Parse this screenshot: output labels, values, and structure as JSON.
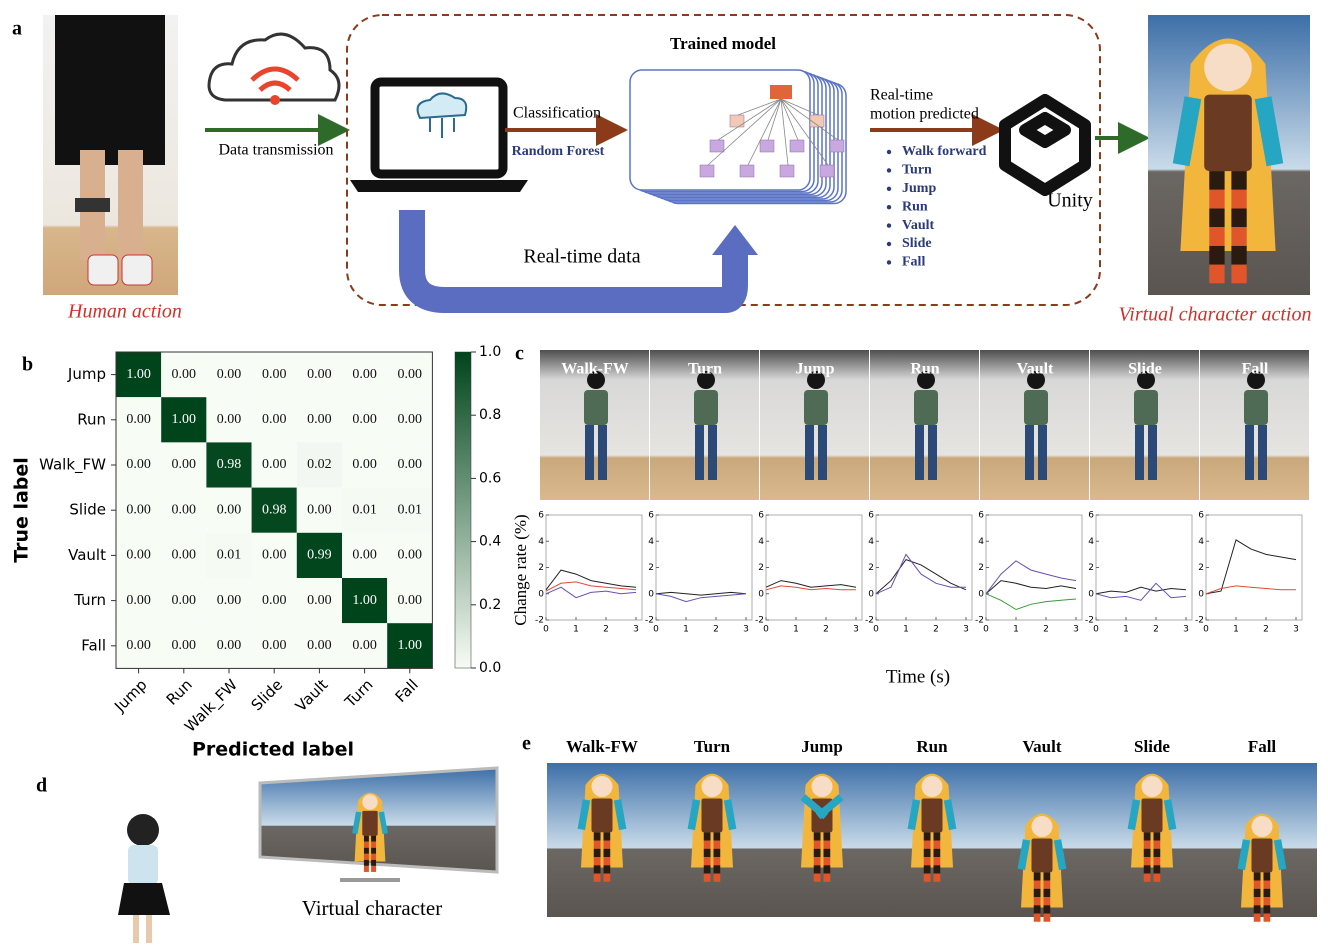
{
  "panel_a": {
    "label": "a",
    "left_caption": "Human action",
    "transmission": "Data transmission",
    "model_title": "Trained model",
    "classification": "Classification",
    "algorithm": "Random Forest",
    "realtime": "Real-time data",
    "predicted": [
      "Real-time",
      "motion predicted"
    ],
    "motions": [
      "Walk forward",
      "Turn",
      "Jump",
      "Run",
      "Vault",
      "Slide",
      "Fall"
    ],
    "engine": "Unity",
    "right_caption": "Virtual character action"
  },
  "chart_data": [
    {
      "type": "heatmap",
      "label": "b",
      "xlabel": "Predicted label",
      "ylabel": "True label",
      "x_categories": [
        "Jump",
        "Run",
        "Walk_FW",
        "Slide",
        "Vault",
        "Turn",
        "Fall"
      ],
      "y_categories": [
        "Jump",
        "Run",
        "Walk_FW",
        "Slide",
        "Vault",
        "Turn",
        "Fall"
      ],
      "values": [
        [
          1,
          0,
          0,
          0,
          0,
          0,
          0
        ],
        [
          0,
          1,
          0,
          0,
          0,
          0,
          0
        ],
        [
          0,
          0,
          0.98,
          0,
          0.02,
          0,
          0
        ],
        [
          0,
          0,
          0,
          0.98,
          0,
          0.01,
          0.01
        ],
        [
          0,
          0,
          0.01,
          0,
          0.99,
          0,
          0
        ],
        [
          0,
          0,
          0,
          0,
          0,
          1,
          0
        ],
        [
          0,
          0,
          0,
          0,
          0,
          0,
          1
        ]
      ],
      "value_labels": [
        [
          "1.00",
          "0.00",
          "0.00",
          "0.00",
          "0.00",
          "0.00",
          "0.00"
        ],
        [
          "0.00",
          "1.00",
          "0.00",
          "0.00",
          "0.00",
          "0.00",
          "0.00"
        ],
        [
          "0.00",
          "0.00",
          "0.98",
          "0.00",
          "0.02",
          "0.00",
          "0.00"
        ],
        [
          "0.00",
          "0.00",
          "0.00",
          "0.98",
          "0.00",
          "0.01",
          "0.01"
        ],
        [
          "0.00",
          "0.00",
          "0.01",
          "0.00",
          "0.99",
          "0.00",
          "0.00"
        ],
        [
          "0.00",
          "0.00",
          "0.00",
          "0.00",
          "0.00",
          "1.00",
          "0.00"
        ],
        [
          "0.00",
          "0.00",
          "0.00",
          "0.00",
          "0.00",
          "0.00",
          "1.00"
        ]
      ],
      "colors": [
        "#f7fcf5",
        "#00441b"
      ],
      "clim": [
        0,
        1
      ],
      "cticks": [
        {
          "value": 0,
          "label": "0.0"
        },
        0.2,
        0.4,
        0.6,
        0.8,
        {
          "value": 1,
          "label": "1.0"
        }
      ]
    },
    {
      "type": "line",
      "label": "c",
      "ylabel": "Change rate (%)",
      "xlabel": "Time (s)",
      "titles": [
        "Walk-FW",
        "Turn",
        "Jump",
        "Run",
        "Vault",
        "Slide",
        "Fall"
      ],
      "ylim": [
        -2,
        6
      ],
      "yticks": [
        -2,
        0,
        2,
        4,
        6
      ],
      "xlim": [
        0,
        3.2
      ],
      "xticks": [
        0,
        1,
        2,
        3
      ],
      "x": [
        0,
        0.5,
        1,
        1.5,
        2,
        2.5,
        3
      ],
      "panels": [
        {
          "series": [
            {
              "color": "#222222",
              "values": [
                0.3,
                1.8,
                1.5,
                1.0,
                0.8,
                0.6,
                0.5
              ]
            },
            {
              "color": "#e04a3a",
              "values": [
                0.2,
                0.8,
                0.9,
                0.6,
                0.5,
                0.4,
                0.3
              ]
            },
            {
              "color": "#6a4fb0",
              "values": [
                0,
                0.5,
                -0.3,
                0.1,
                0.2,
                0,
                0.1
              ]
            }
          ]
        },
        {
          "series": [
            {
              "color": "#222222",
              "values": [
                0,
                0.1,
                0,
                -0.1,
                0,
                0.1,
                0
              ]
            },
            {
              "color": "#6a4fb0",
              "values": [
                0,
                -0.2,
                -0.6,
                -0.3,
                -0.2,
                -0.1,
                0
              ]
            }
          ]
        },
        {
          "series": [
            {
              "color": "#222222",
              "values": [
                0.5,
                1.0,
                0.8,
                0.5,
                0.6,
                0.7,
                0.5
              ]
            },
            {
              "color": "#e04a3a",
              "values": [
                0.3,
                0.6,
                0.5,
                0.3,
                0.4,
                0.3,
                0.3
              ]
            }
          ]
        },
        {
          "series": [
            {
              "color": "#222222",
              "values": [
                0,
                1.0,
                2.6,
                2.2,
                1.5,
                0.8,
                0.3
              ]
            },
            {
              "color": "#6a4fb0",
              "values": [
                0,
                0.5,
                3.0,
                1.5,
                0.8,
                0.5,
                0.5
              ]
            }
          ]
        },
        {
          "series": [
            {
              "color": "#222222",
              "values": [
                0,
                1.0,
                0.8,
                0.5,
                0.4,
                0.6,
                0.4
              ]
            },
            {
              "color": "#6a4fb0",
              "values": [
                0,
                1.5,
                2.5,
                1.8,
                1.5,
                1.2,
                1.0
              ]
            },
            {
              "color": "#3a9a3a",
              "values": [
                0,
                -0.5,
                -1.2,
                -0.8,
                -0.6,
                -0.5,
                -0.4
              ]
            }
          ]
        },
        {
          "series": [
            {
              "color": "#222222",
              "values": [
                0,
                0.2,
                0.1,
                0.5,
                0.2,
                0.4,
                0.3
              ]
            },
            {
              "color": "#6a4fb0",
              "values": [
                0,
                -0.3,
                -0.2,
                -0.5,
                0.8,
                -0.3,
                -0.2
              ]
            }
          ]
        },
        {
          "series": [
            {
              "color": "#222222",
              "values": [
                0,
                0.2,
                4.1,
                3.4,
                3.0,
                2.8,
                2.6
              ]
            },
            {
              "color": "#e04a3a",
              "values": [
                0,
                0.4,
                0.6,
                0.5,
                0.4,
                0.3,
                0.3
              ]
            }
          ]
        }
      ]
    }
  ],
  "panel_d": {
    "label": "d",
    "caption": "Virtual character"
  },
  "panel_e": {
    "label": "e",
    "titles": [
      "Walk-FW",
      "Turn",
      "Jump",
      "Run",
      "Vault",
      "Slide",
      "Fall"
    ]
  }
}
